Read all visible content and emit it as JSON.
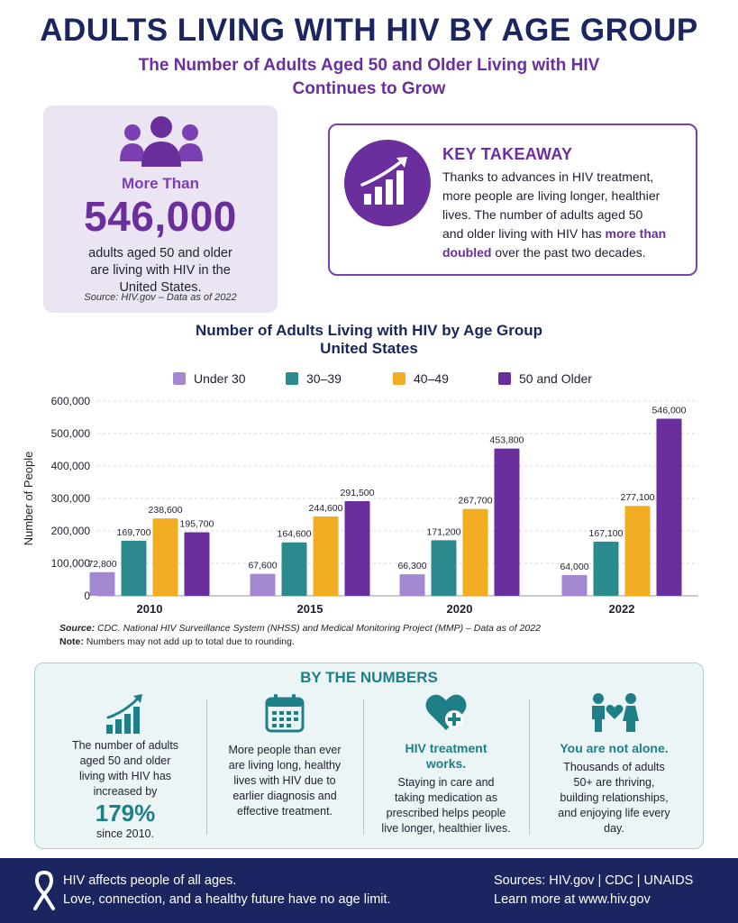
{
  "header": {
    "title": "ADULTS LIVING WITH HIV BY AGE GROUP",
    "subtitle_line1": "The Number of Adults Aged 50 and Older Living with HIV",
    "subtitle_line2": "Continues to Grow"
  },
  "stat_card": {
    "icon": "people-group-icon",
    "more_than": "More Than",
    "number": "546,000",
    "desc_line1": "adults aged 50 and older",
    "desc_line2": "are living with HIV in the",
    "desc_line3": "United States.",
    "source": "Source: HIV.gov – Data as of 2022"
  },
  "key_takeaway": {
    "icon": "growth-chart-icon",
    "title": "KEY TAKEAWAY",
    "line1": "Thanks to advances in HIV treatment,",
    "line2": "more people are living longer, healthier",
    "line3": "lives. The number of adults aged 50",
    "line4_pre": "and older living with HIV has ",
    "line4_hl": "more than",
    "line5_hl": "doubled",
    "line5_post": " over the past two decades."
  },
  "colors": {
    "navy": "#1b2660",
    "purple": "#6a2f9c",
    "teal": "#1f7f86",
    "under30": "#a487d1",
    "30_39": "#2a8a8e",
    "40_49": "#f2ad22",
    "50_plus": "#6a2f9c"
  },
  "chart_data": {
    "type": "bar",
    "title": "Number of Adults Living with HIV by Age Group",
    "subtitle": "United States",
    "ylabel": "Number of People",
    "xlabel": "",
    "ylim": [
      0,
      600000
    ],
    "yticks": [
      0,
      100000,
      200000,
      300000,
      400000,
      500000,
      600000
    ],
    "ytick_labels": [
      "0",
      "100,000",
      "200,000",
      "300,000",
      "400,000",
      "500,000",
      "600,000"
    ],
    "grid": true,
    "legend_position": "top",
    "categories": [
      "2010",
      "2015",
      "2020",
      "2022"
    ],
    "series": [
      {
        "name": "Under 30",
        "color": "#a487d1",
        "values": [
          72800,
          67600,
          66300,
          64000
        ],
        "labels": [
          "72,800",
          "67,600",
          "66,300",
          "64,000"
        ]
      },
      {
        "name": "30–39",
        "color": "#2a8a8e",
        "values": [
          169700,
          164600,
          171200,
          167100
        ],
        "labels": [
          "169,700",
          "164,600",
          "171,200",
          "167,100"
        ]
      },
      {
        "name": "40–49",
        "color": "#f2ad22",
        "values": [
          238600,
          244600,
          267700,
          277100
        ],
        "labels": [
          "238,600",
          "244,600",
          "267,700",
          "277,100"
        ]
      },
      {
        "name": "50 and Older",
        "color": "#6a2f9c",
        "values": [
          195700,
          291500,
          453800,
          546000
        ],
        "labels": [
          "195,700",
          "291,500",
          "453,800",
          "546,000"
        ]
      }
    ]
  },
  "notes": {
    "source_label": "Source:",
    "source_text": " CDC. National HIV Surveillance System (NHSS) and Medical Monitoring Project (MMP) – Data as of 2022",
    "note_label": "Note:",
    "note_text": " Numbers may not add up to total due to rounding."
  },
  "by_the_numbers": {
    "title": "BY THE NUMBERS",
    "col1": {
      "icon": "bar-growth-icon",
      "line1": "The number of adults",
      "line2": "aged 50 and older",
      "line3": "living with HIV has",
      "line4": "increased by",
      "pct": "179%",
      "line5": "since 2010."
    },
    "col2": {
      "icon": "calendar-icon",
      "line1": "More people than ever",
      "line2": "are living long, healthy",
      "line3": "lives with HIV due to",
      "line4": "earlier diagnosis and",
      "line5": "effective treatment."
    },
    "col3": {
      "icon": "heart-plus-icon",
      "head1": "HIV treatment",
      "head2": "works.",
      "line1": "Staying in care and",
      "line2": "taking medication as",
      "line3": "prescribed helps people",
      "line4": "live longer, healthier lives."
    },
    "col4": {
      "icon": "two-people-heart-icon",
      "head": "You are not alone.",
      "line1": "Thousands of adults",
      "line2": "50+ are thriving,",
      "line3": "building relationships,",
      "line4": "and enjoying life every",
      "line5": "day."
    }
  },
  "footer": {
    "icon": "awareness-ribbon-icon",
    "left1": "HIV affects people of all ages.",
    "left2": "Love, connection, and a healthy future have no age limit.",
    "right1": "Sources: HIV.gov | CDC | UNAIDS",
    "right2": "Learn more at www.hiv.gov"
  }
}
